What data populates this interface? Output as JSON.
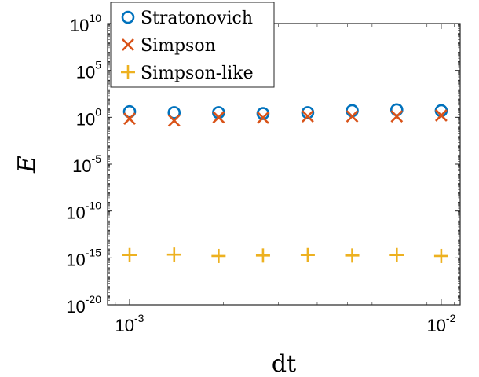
{
  "chart_data": {
    "type": "scatter",
    "title": "",
    "xlabel": "dt",
    "ylabel": "E",
    "xscale": "log",
    "yscale": "log",
    "xlim": [
      0.00085,
      0.0115
    ],
    "ylim_exponent": [
      -20,
      10
    ],
    "grid": false,
    "legend_position": "top-left",
    "x_ticks": [
      {
        "base": "10",
        "exp": "-3"
      },
      {
        "base": "10",
        "exp": "-2"
      }
    ],
    "y_ticks": [
      {
        "base": "10",
        "exp": "10",
        "value_exp": 10
      },
      {
        "base": "10",
        "exp": "5",
        "value_exp": 5
      },
      {
        "base": "10",
        "exp": "0",
        "value_exp": 0
      },
      {
        "base": "10",
        "exp": "-5",
        "value_exp": -5
      },
      {
        "base": "10",
        "exp": "-10",
        "value_exp": -10
      },
      {
        "base": "10",
        "exp": "-15",
        "value_exp": -15
      },
      {
        "base": "10",
        "exp": "-20",
        "value_exp": -20
      }
    ],
    "x": [
      0.001,
      0.00139,
      0.00193,
      0.00268,
      0.00373,
      0.00518,
      0.0072,
      0.01
    ],
    "series": [
      {
        "name": "Stratonovich",
        "marker": "circle",
        "color": "#0072BD",
        "values_exp": [
          0.6,
          0.5,
          0.5,
          0.4,
          0.5,
          0.7,
          0.8,
          0.7
        ]
      },
      {
        "name": "Simpson",
        "marker": "x",
        "color": "#D95319",
        "values_exp": [
          -0.15,
          -0.35,
          0.0,
          -0.05,
          0.1,
          0.1,
          0.1,
          0.2
        ]
      },
      {
        "name": "Simpson-like",
        "marker": "plus",
        "color": "#EDB120",
        "values_exp": [
          -14.7,
          -14.65,
          -14.8,
          -14.75,
          -14.7,
          -14.75,
          -14.7,
          -14.8
        ]
      }
    ]
  }
}
